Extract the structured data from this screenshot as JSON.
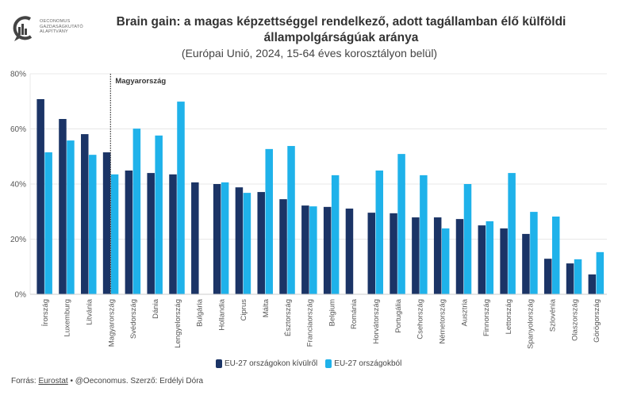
{
  "logo": {
    "lines": [
      "OECONOMUS",
      "GAZDASÁGKUTATÓ",
      "ALAPÍTVÁNY"
    ]
  },
  "header": {
    "title_line1": "Brain gain: a magas képzettséggel rendelkező, adott tagállamban élő külföldi",
    "title_line2": "állampolgárságúak aránya",
    "subtitle": "(Európai Unió, 2024, 15-64 éves korosztályon belül)"
  },
  "colors": {
    "series_dark": "#1b3466",
    "series_light": "#1fb2ea",
    "grid": "#e8e8e8",
    "axis_text": "#555555"
  },
  "chart_data": {
    "type": "bar",
    "title": "Brain gain: a magas képzettséggel rendelkező, adott tagállamban élő külföldi állampolgárságúak aránya",
    "subtitle": "(Európai Unió, 2024, 15-64 éves korosztályon belül)",
    "xlabel": "",
    "ylabel": "",
    "ylim": [
      0,
      80
    ],
    "yticks": [
      0,
      20,
      40,
      60,
      80
    ],
    "ytick_labels": [
      "0%",
      "20%",
      "40%",
      "60%",
      "80%"
    ],
    "grid": true,
    "legend_position": "bottom",
    "categories": [
      "Írország",
      "Luxemburg",
      "Litvánia",
      "Magyarország",
      "Svédország",
      "Dánia",
      "Lengyelország",
      "Bulgária",
      "Hollandia",
      "Ciprus",
      "Málta",
      "Észtország",
      "Franciaország",
      "Belgium",
      "Románia",
      "Horvátország",
      "Portugália",
      "Csehország",
      "Németország",
      "Ausztria",
      "Finnország",
      "Lettország",
      "Spanyolország",
      "Szlovénia",
      "Olaszország",
      "Görögország"
    ],
    "series": [
      {
        "name": "EU-27 országokon kívülről",
        "values": [
          70.8,
          63.6,
          58.1,
          51.5,
          44.9,
          44.0,
          43.5,
          40.6,
          40.0,
          38.8,
          37.1,
          34.5,
          32.2,
          31.7,
          31.1,
          29.6,
          29.4,
          27.9,
          27.9,
          27.3,
          25.0,
          23.9,
          21.9,
          12.9,
          11.2,
          7.2
        ]
      },
      {
        "name": "EU-27 országokból",
        "values": [
          51.5,
          55.8,
          50.6,
          43.5,
          60.1,
          57.6,
          69.9,
          null,
          40.6,
          36.8,
          52.7,
          53.8,
          31.9,
          43.2,
          null,
          44.9,
          50.9,
          43.2,
          23.9,
          40.0,
          26.5,
          44.0,
          29.9,
          28.2,
          12.7,
          15.3
        ]
      }
    ],
    "annotations": [
      {
        "text": "Magyarország",
        "category": "Magyarország",
        "type": "dotted-vertical-line"
      }
    ]
  },
  "footer": {
    "source_label": "Forrás:",
    "source_link": "Eurostat",
    "rest": " • @Oeconomus. Szerző: Erdélyi Dóra"
  }
}
